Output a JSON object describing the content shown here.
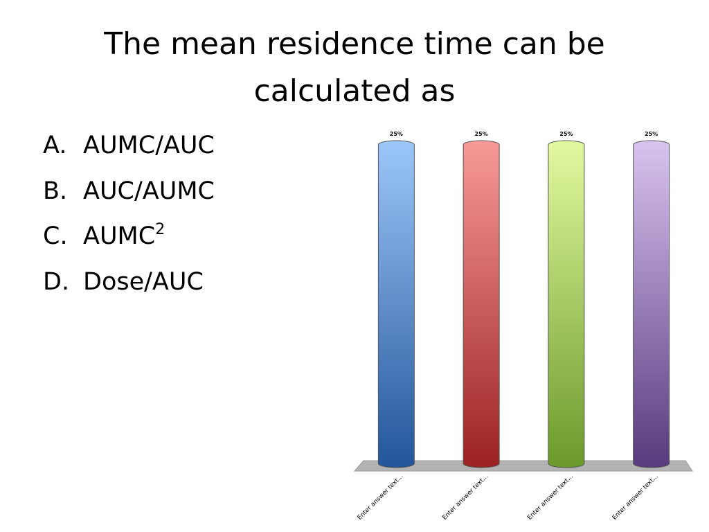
{
  "title": "The mean residence time can be calculated as",
  "options": [
    {
      "letter": "A.",
      "text": "AUMC/AUC"
    },
    {
      "letter": "B.",
      "text": "AUC/AUMC"
    },
    {
      "letter": "C.",
      "text": "AUMC",
      "sup": "2"
    },
    {
      "letter": "D.",
      "text": "Dose/AUC"
    }
  ],
  "chart_data": {
    "type": "bar",
    "categories": [
      "Enter answer text...",
      "Enter answer text...",
      "Enter answer text...",
      "Enter answer text..."
    ],
    "values": [
      25,
      25,
      25,
      25
    ],
    "value_labels": [
      "25%",
      "25%",
      "25%",
      "25%"
    ],
    "colors": [
      [
        "#9dc7f9",
        "#22559a"
      ],
      [
        "#f89a98",
        "#9b2222"
      ],
      [
        "#e3f9a0",
        "#6a9a2a"
      ],
      [
        "#d8c3ef",
        "#583a7e"
      ]
    ]
  }
}
